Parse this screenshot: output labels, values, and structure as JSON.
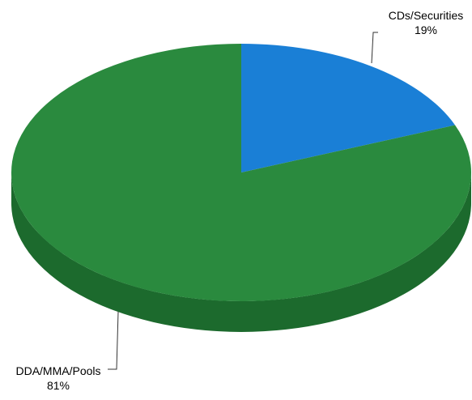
{
  "chart_data": {
    "type": "pie",
    "title": "",
    "style": "3d-tilted",
    "legend": "none",
    "slices": [
      {
        "label": "CDs/Securities",
        "value": 19,
        "value_label": "19%",
        "color": "#1a7fd6",
        "side_color": "#135f9f"
      },
      {
        "label": "DDA/MMA/Pools",
        "value": 81,
        "value_label": "81%",
        "color": "#2a8a3e",
        "side_color": "#1c6a2d"
      }
    ]
  }
}
